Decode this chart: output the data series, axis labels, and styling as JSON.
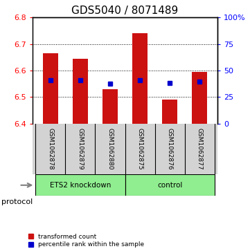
{
  "title": "GDS5040 / 8071489",
  "samples": [
    "GSM1062878",
    "GSM1062879",
    "GSM1062880",
    "GSM1062875",
    "GSM1062876",
    "GSM1062877"
  ],
  "bar_tops": [
    6.665,
    6.645,
    6.53,
    6.74,
    6.49,
    6.595
  ],
  "bar_bottom": 6.4,
  "blue_dots": [
    6.564,
    6.564,
    6.552,
    6.564,
    6.553,
    6.558
  ],
  "ylim": [
    6.4,
    6.8
  ],
  "yticks_left": [
    6.4,
    6.5,
    6.6,
    6.7,
    6.8
  ],
  "yticks_right": [
    0,
    25,
    50,
    75,
    100
  ],
  "grid_lines": [
    6.5,
    6.6,
    6.7
  ],
  "bar_color": "#cc1111",
  "dot_color": "#0000cc",
  "protocol_label": "protocol",
  "ets2_label": "ETS2 knockdown",
  "control_label": "control",
  "legend_items": [
    {
      "color": "#cc1111",
      "label": "transformed count"
    },
    {
      "color": "#0000cc",
      "label": "percentile rank within the sample"
    }
  ],
  "title_fontsize": 11,
  "tick_fontsize": 8,
  "bar_width": 0.5,
  "background_color": "#ffffff",
  "plot_bg": "#ffffff",
  "label_area_bg": "#d3d3d3",
  "green_color": "#90ee90"
}
